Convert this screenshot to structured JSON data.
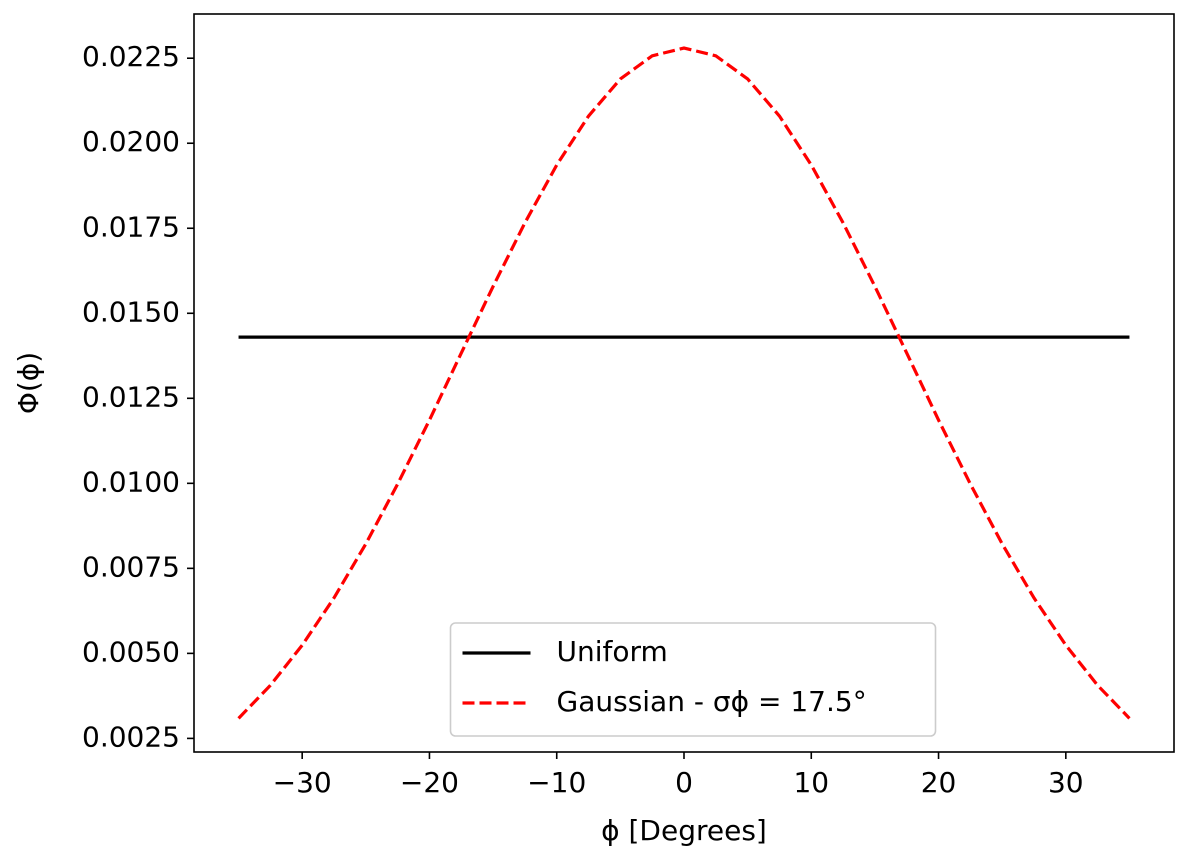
{
  "chart_data": {
    "type": "line",
    "xlabel": "ϕ [Degrees]",
    "ylabel": "Φ(ϕ)",
    "xlim": [
      -38.5,
      38.5
    ],
    "ylim": [
      0.0021,
      0.0238
    ],
    "xticks": [
      {
        "value": -30,
        "label": "−30"
      },
      {
        "value": -20,
        "label": "−20"
      },
      {
        "value": -10,
        "label": "−10"
      },
      0,
      10,
      20,
      30
    ],
    "yticks": [
      0.0025,
      {
        "value": 0.005,
        "label": "0.0050"
      },
      0.0075,
      {
        "value": 0.01,
        "label": "0.0100"
      },
      0.0125,
      {
        "value": 0.015,
        "label": "0.0150"
      },
      0.0175,
      {
        "value": 0.02,
        "label": "0.0200"
      },
      0.0225
    ],
    "legend": "lower center",
    "series": [
      {
        "name": "Uniform",
        "color": "#000000",
        "dash": "solid",
        "x": [
          -35,
          35
        ],
        "values": [
          0.0143,
          0.0143
        ]
      },
      {
        "name": "Gaussian - σϕ = 17.5°",
        "color": "#ff0000",
        "dash": "dashed",
        "x": [
          -35,
          -32.5,
          -30,
          -27.5,
          -25,
          -22.5,
          -20,
          -17.5,
          -15,
          -12.5,
          -10,
          -7.5,
          -5,
          -2.5,
          0,
          2.5,
          5,
          7.5,
          10,
          12.5,
          15,
          17.5,
          20,
          22.5,
          25,
          27.5,
          30,
          32.5,
          35
        ],
        "values": [
          0.00309,
          0.00406,
          0.00524,
          0.00663,
          0.00822,
          0.00998,
          0.01186,
          0.01383,
          0.01579,
          0.01766,
          0.01936,
          0.0208,
          0.02189,
          0.02257,
          0.0228,
          0.02257,
          0.02189,
          0.0208,
          0.01936,
          0.01766,
          0.01579,
          0.01383,
          0.01186,
          0.00998,
          0.00822,
          0.00663,
          0.00524,
          0.00406,
          0.00309
        ]
      }
    ]
  }
}
